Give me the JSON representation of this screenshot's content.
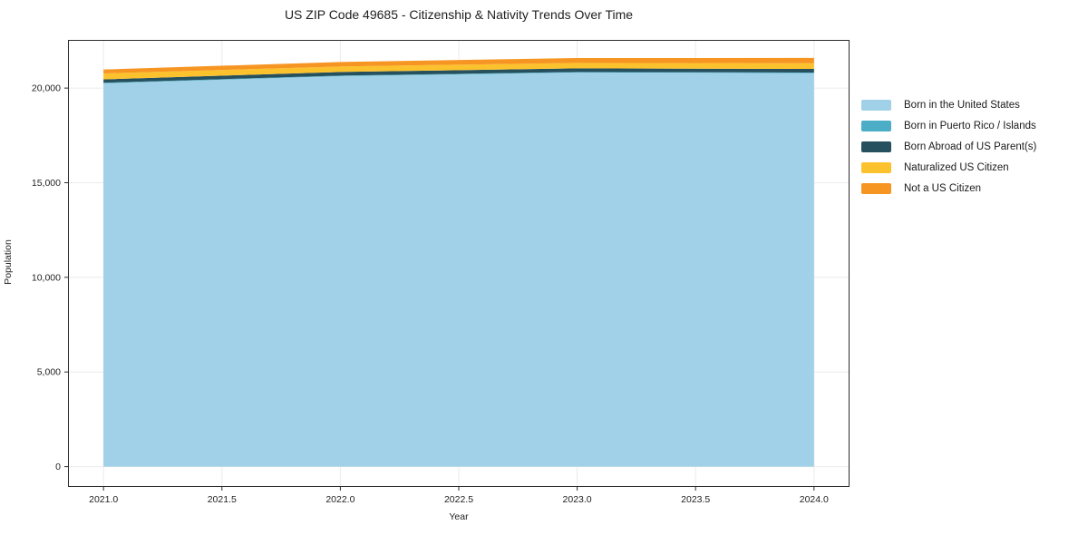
{
  "title": "US ZIP Code 49685 - Citizenship & Nativity Trends Over Time",
  "chart_data": {
    "type": "area",
    "stacked": true,
    "title": "US ZIP Code 49685 - Citizenship & Nativity Trends Over Time",
    "xlabel": "Year",
    "ylabel": "Population",
    "x": [
      2021,
      2022,
      2023,
      2024
    ],
    "series": [
      {
        "name": "Born in the United States",
        "color": "#A0D1E8",
        "values": [
          20250,
          20630,
          20820,
          20790
        ]
      },
      {
        "name": "Born in Puerto Rico / Islands",
        "color": "#4CAEC6",
        "values": [
          30,
          30,
          30,
          30
        ]
      },
      {
        "name": "Born Abroad of US Parent(s)",
        "color": "#26505E",
        "values": [
          180,
          190,
          190,
          190
        ]
      },
      {
        "name": "Naturalized US Citizen",
        "color": "#FCC22D",
        "values": [
          310,
          290,
          290,
          300
        ]
      },
      {
        "name": "Not a US Citizen",
        "color": "#F79523",
        "values": [
          210,
          240,
          255,
          285
        ]
      }
    ],
    "xticks": [
      2021.0,
      2021.5,
      2022.0,
      2022.5,
      2023.0,
      2023.5,
      2024.0
    ],
    "xtick_labels": [
      "2021.0",
      "2021.5",
      "2022.0",
      "2022.5",
      "2023.0",
      "2023.5",
      "2024.0"
    ],
    "yticks": [
      0,
      5000,
      10000,
      15000,
      20000
    ],
    "ytick_labels": [
      "0",
      "5,000",
      "10,000",
      "15,000",
      "20,000"
    ],
    "xlim": [
      2020.85,
      2024.15
    ],
    "ylim": [
      -1073,
      22545
    ],
    "grid": true,
    "grid_color": "#ebebeb",
    "spine_color": "#2b2b2b",
    "legend_position": "right"
  }
}
